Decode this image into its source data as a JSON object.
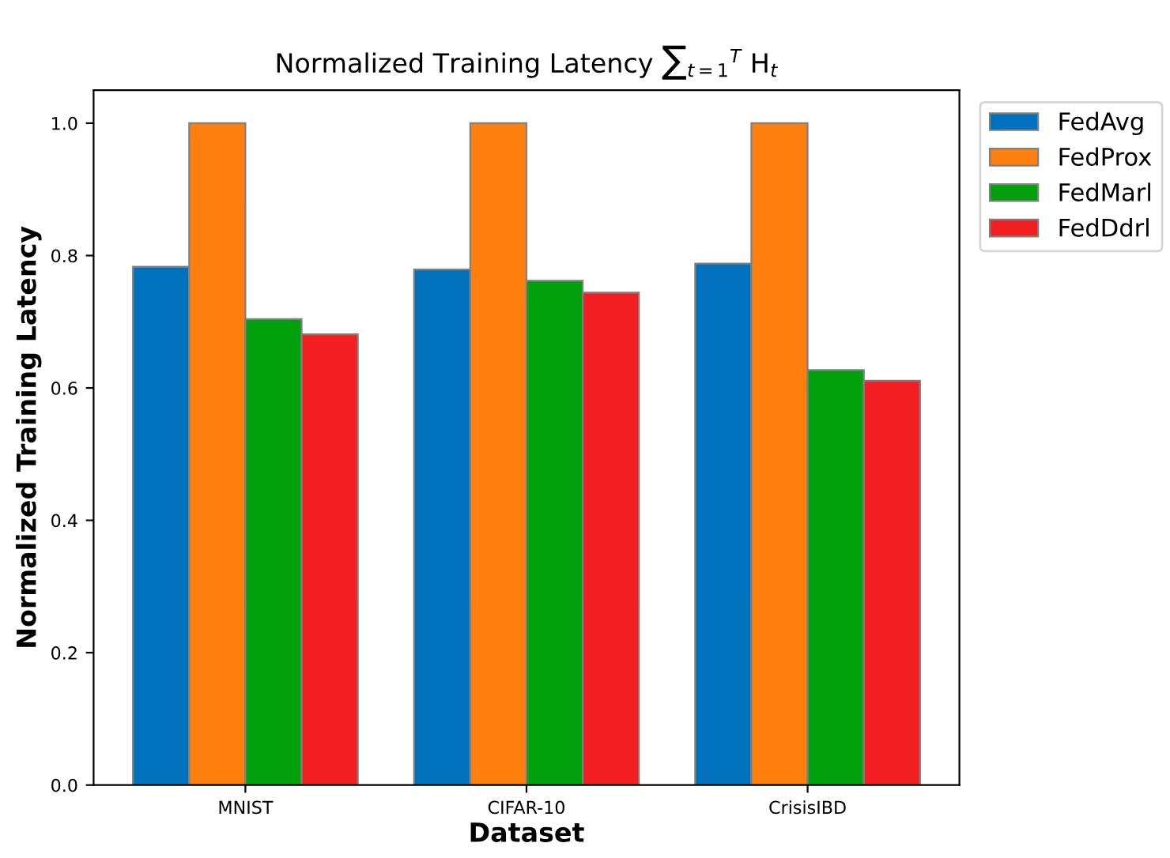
{
  "chart_data": {
    "type": "bar",
    "title": "Normalized Training Latency ∑$_{t=1}$$^{T}$ H$_{t}$",
    "xlabel": "Dataset",
    "ylabel": "Normalized Training Latency",
    "categories": [
      "MNIST",
      "CIFAR-10",
      "CrisisIBD"
    ],
    "series": [
      {
        "name": "FedAvg",
        "color": "#0072bd",
        "values": [
          0.783,
          0.779,
          0.788
        ]
      },
      {
        "name": "FedProx",
        "color": "#ff7f0e",
        "values": [
          1.0,
          1.0,
          1.0
        ]
      },
      {
        "name": "FedMarl",
        "color": "#02a00c",
        "values": [
          0.704,
          0.762,
          0.627
        ]
      },
      {
        "name": "FedDdrl",
        "color": "#f41f23",
        "values": [
          0.681,
          0.744,
          0.611
        ]
      }
    ],
    "ylim": [
      0,
      1.05
    ],
    "yticks": [
      {
        "value": 0,
        "label": "0.0"
      },
      0.2,
      0.4,
      0.6,
      0.8,
      {
        "value": 1,
        "label": "1.0"
      }
    ],
    "grid": false,
    "legend": "top right"
  }
}
